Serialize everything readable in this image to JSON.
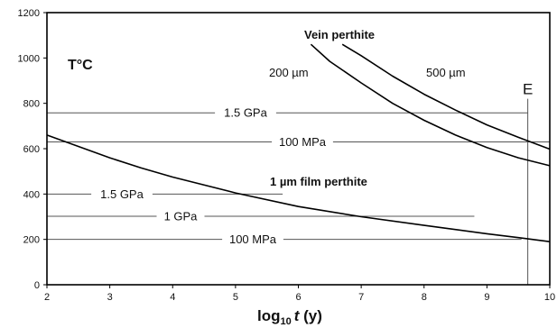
{
  "chart_data": {
    "type": "line",
    "xlim": [
      2,
      10
    ],
    "ylim": [
      0,
      1200
    ],
    "x_ticks": [
      2,
      3,
      4,
      5,
      6,
      7,
      8,
      9,
      10
    ],
    "y_ticks": [
      0,
      200,
      400,
      600,
      800,
      1000,
      1200
    ],
    "y_unit_label": "T°C",
    "xlabel_parts": {
      "main": "log",
      "sub": "10",
      "var": "t",
      "unit": " (y)"
    },
    "series": [
      {
        "name": "Vein perthite 200 µm",
        "color": "#000000",
        "x": [
          6.2,
          6.5,
          7.0,
          7.5,
          8.0,
          8.5,
          9.0,
          9.5,
          10.0
        ],
        "y": [
          1060,
          985,
          890,
          800,
          725,
          660,
          605,
          560,
          525
        ]
      },
      {
        "name": "Vein perthite 500 µm",
        "color": "#000000",
        "x": [
          6.7,
          7.0,
          7.5,
          8.0,
          8.5,
          9.0,
          9.5,
          10.0
        ],
        "y": [
          1060,
          1010,
          920,
          840,
          770,
          705,
          650,
          598
        ]
      },
      {
        "name": "1 µm film perthite",
        "color": "#000000",
        "x": [
          2.0,
          2.5,
          3.0,
          3.5,
          4.0,
          5.0,
          6.0,
          7.0,
          8.0,
          9.0,
          9.5,
          10.0
        ],
        "y": [
          660,
          610,
          560,
          515,
          475,
          405,
          345,
          300,
          262,
          225,
          208,
          190
        ]
      }
    ],
    "pressure_lines": [
      {
        "label": "1.5 GPa",
        "y": 758,
        "x_start": 2.0,
        "x_end": 9.65
      },
      {
        "label": "100 MPa",
        "y": 630,
        "x_start": 2.0,
        "x_end": 10.0
      },
      {
        "label": "1.5 GPa",
        "y": 400,
        "x_start": 2.0,
        "x_end": 5.75
      },
      {
        "label": "1 GPa",
        "y": 302,
        "x_start": 2.0,
        "x_end": 8.8
      },
      {
        "label": "100 MPa",
        "y": 200,
        "x_start": 2.0,
        "x_end": 9.55
      }
    ],
    "vertical_marker": {
      "label": "E",
      "x": 9.65
    },
    "annotations": {
      "vein": "Vein perthite",
      "size200": "200 µm",
      "size500": "500 µm",
      "film": "1 µm film perthite"
    }
  }
}
